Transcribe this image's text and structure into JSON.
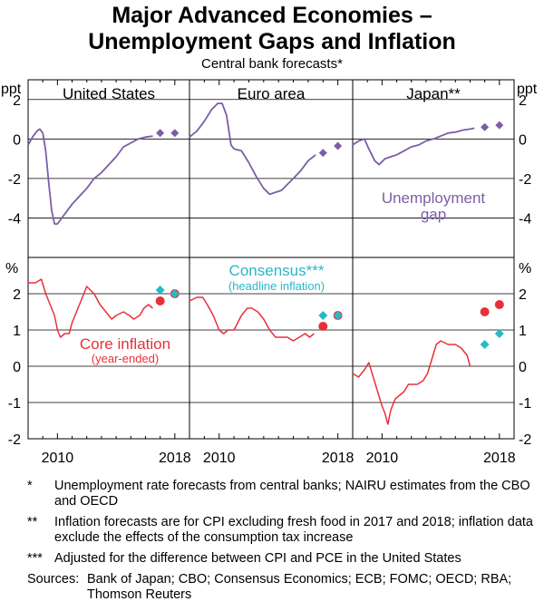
{
  "title_line1": "Major Advanced Economies –",
  "title_line2": "Unemployment Gaps and Inflation",
  "subtitle": "Central bank forecasts*",
  "chart_data": {
    "type": "line",
    "colors": {
      "purple": "#7b5ea7",
      "red": "#e8303a",
      "teal": "#29b8c8",
      "axis": "#000000",
      "grid": "#000000"
    },
    "panels": [
      {
        "name": "United States",
        "x_domain": [
          2008,
          2019
        ],
        "x_ticks": [
          2010,
          2018
        ]
      },
      {
        "name": "Euro area",
        "x_domain": [
          2008,
          2019
        ],
        "x_ticks": [
          2010,
          2018
        ]
      },
      {
        "name": "Japan**",
        "x_domain": [
          2008,
          2019
        ],
        "x_ticks": [
          2010,
          2018
        ]
      }
    ],
    "top_axis": {
      "unit": "ppt",
      "ylim": [
        -6,
        3
      ],
      "ticks": [
        2,
        0,
        -2,
        -4
      ]
    },
    "bottom_axis": {
      "unit": "%",
      "ylim": [
        -2,
        3
      ],
      "ticks": [
        2,
        1,
        0,
        -1,
        -2
      ]
    },
    "unemployment_gap": {
      "label_line1": "Unemployment",
      "label_line2": "gap",
      "series": [
        {
          "panel": 0,
          "points": [
            [
              2008.0,
              -0.3
            ],
            [
              2008.3,
              0.1
            ],
            [
              2008.6,
              0.4
            ],
            [
              2008.8,
              0.5
            ],
            [
              2009.0,
              0.3
            ],
            [
              2009.2,
              -0.6
            ],
            [
              2009.4,
              -2.2
            ],
            [
              2009.6,
              -3.6
            ],
            [
              2009.8,
              -4.3
            ],
            [
              2010.0,
              -4.3
            ],
            [
              2010.3,
              -4.0
            ],
            [
              2010.6,
              -3.7
            ],
            [
              2011.0,
              -3.3
            ],
            [
              2011.5,
              -2.9
            ],
            [
              2012.0,
              -2.5
            ],
            [
              2012.5,
              -2.0
            ],
            [
              2013.0,
              -1.7
            ],
            [
              2013.5,
              -1.3
            ],
            [
              2014.0,
              -0.9
            ],
            [
              2014.5,
              -0.4
            ],
            [
              2015.0,
              -0.2
            ],
            [
              2015.5,
              0.0
            ],
            [
              2016.0,
              0.1
            ],
            [
              2016.5,
              0.15
            ]
          ]
        },
        {
          "panel": 1,
          "points": [
            [
              2008.0,
              0.1
            ],
            [
              2008.5,
              0.4
            ],
            [
              2009.0,
              0.9
            ],
            [
              2009.5,
              1.5
            ],
            [
              2009.9,
              1.8
            ],
            [
              2010.2,
              1.8
            ],
            [
              2010.5,
              1.2
            ],
            [
              2010.8,
              -0.3
            ],
            [
              2011.0,
              -0.5
            ],
            [
              2011.5,
              -0.6
            ],
            [
              2012.0,
              -1.2
            ],
            [
              2012.5,
              -1.9
            ],
            [
              2013.0,
              -2.5
            ],
            [
              2013.4,
              -2.8
            ],
            [
              2013.8,
              -2.7
            ],
            [
              2014.2,
              -2.6
            ],
            [
              2014.6,
              -2.3
            ],
            [
              2015.0,
              -2.0
            ],
            [
              2015.5,
              -1.6
            ],
            [
              2016.0,
              -1.1
            ],
            [
              2016.5,
              -0.8
            ]
          ]
        },
        {
          "panel": 2,
          "points": [
            [
              2008.0,
              -0.3
            ],
            [
              2008.4,
              -0.1
            ],
            [
              2008.8,
              0.0
            ],
            [
              2009.1,
              -0.5
            ],
            [
              2009.5,
              -1.1
            ],
            [
              2009.8,
              -1.3
            ],
            [
              2010.2,
              -1.0
            ],
            [
              2010.6,
              -0.9
            ],
            [
              2011.0,
              -0.8
            ],
            [
              2011.5,
              -0.6
            ],
            [
              2012.0,
              -0.4
            ],
            [
              2012.5,
              -0.3
            ],
            [
              2013.0,
              -0.1
            ],
            [
              2013.5,
              0.0
            ],
            [
              2014.0,
              0.15
            ],
            [
              2014.5,
              0.3
            ],
            [
              2015.0,
              0.35
            ],
            [
              2015.5,
              0.45
            ],
            [
              2016.0,
              0.5
            ],
            [
              2016.3,
              0.55
            ]
          ]
        }
      ],
      "forecasts": [
        {
          "panel": 0,
          "points": [
            [
              2017,
              0.3
            ],
            [
              2018,
              0.3
            ]
          ]
        },
        {
          "panel": 1,
          "points": [
            [
              2017,
              -0.7
            ],
            [
              2018,
              -0.35
            ]
          ]
        },
        {
          "panel": 2,
          "points": [
            [
              2017,
              0.6
            ],
            [
              2018,
              0.7
            ]
          ]
        }
      ]
    },
    "core_inflation": {
      "label_line1": "Core inflation",
      "label_line2": "(year-ended)",
      "series": [
        {
          "panel": 0,
          "points": [
            [
              2008.0,
              2.3
            ],
            [
              2008.5,
              2.3
            ],
            [
              2008.9,
              2.4
            ],
            [
              2009.2,
              2.0
            ],
            [
              2009.5,
              1.7
            ],
            [
              2009.8,
              1.4
            ],
            [
              2010.0,
              1.0
            ],
            [
              2010.2,
              0.8
            ],
            [
              2010.5,
              0.9
            ],
            [
              2010.8,
              0.9
            ],
            [
              2011.0,
              1.2
            ],
            [
              2011.4,
              1.6
            ],
            [
              2011.8,
              2.0
            ],
            [
              2012.0,
              2.2
            ],
            [
              2012.5,
              2.0
            ],
            [
              2012.9,
              1.7
            ],
            [
              2013.3,
              1.5
            ],
            [
              2013.7,
              1.3
            ],
            [
              2014.0,
              1.4
            ],
            [
              2014.5,
              1.5
            ],
            [
              2014.9,
              1.4
            ],
            [
              2015.2,
              1.3
            ],
            [
              2015.6,
              1.4
            ],
            [
              2015.9,
              1.6
            ],
            [
              2016.2,
              1.7
            ],
            [
              2016.5,
              1.6
            ]
          ]
        },
        {
          "panel": 1,
          "points": [
            [
              2008.0,
              1.8
            ],
            [
              2008.5,
              1.9
            ],
            [
              2008.9,
              1.9
            ],
            [
              2009.2,
              1.7
            ],
            [
              2009.6,
              1.4
            ],
            [
              2010.0,
              1.0
            ],
            [
              2010.3,
              0.9
            ],
            [
              2010.6,
              1.0
            ],
            [
              2011.0,
              1.0
            ],
            [
              2011.5,
              1.4
            ],
            [
              2011.9,
              1.6
            ],
            [
              2012.2,
              1.6
            ],
            [
              2012.6,
              1.5
            ],
            [
              2013.0,
              1.3
            ],
            [
              2013.4,
              1.0
            ],
            [
              2013.8,
              0.8
            ],
            [
              2014.2,
              0.8
            ],
            [
              2014.6,
              0.8
            ],
            [
              2015.0,
              0.7
            ],
            [
              2015.4,
              0.8
            ],
            [
              2015.8,
              0.9
            ],
            [
              2016.1,
              0.8
            ],
            [
              2016.4,
              0.9
            ]
          ]
        },
        {
          "panel": 2,
          "points": [
            [
              2008.0,
              -0.2
            ],
            [
              2008.4,
              -0.3
            ],
            [
              2008.8,
              -0.1
            ],
            [
              2009.1,
              0.1
            ],
            [
              2009.4,
              -0.3
            ],
            [
              2009.7,
              -0.7
            ],
            [
              2010.0,
              -1.1
            ],
            [
              2010.2,
              -1.3
            ],
            [
              2010.4,
              -1.6
            ],
            [
              2010.6,
              -1.2
            ],
            [
              2010.9,
              -0.9
            ],
            [
              2011.2,
              -0.8
            ],
            [
              2011.5,
              -0.7
            ],
            [
              2011.8,
              -0.5
            ],
            [
              2012.1,
              -0.5
            ],
            [
              2012.4,
              -0.5
            ],
            [
              2012.8,
              -0.4
            ],
            [
              2013.1,
              -0.2
            ],
            [
              2013.4,
              0.2
            ],
            [
              2013.7,
              0.6
            ],
            [
              2014.0,
              0.7
            ],
            [
              2014.5,
              0.6
            ],
            [
              2015.0,
              0.6
            ],
            [
              2015.4,
              0.5
            ],
            [
              2015.8,
              0.3
            ],
            [
              2016.0,
              0.0
            ]
          ]
        }
      ],
      "forecasts": [
        {
          "panel": 0,
          "points": [
            [
              2017,
              1.8
            ],
            [
              2018,
              2.0
            ]
          ]
        },
        {
          "panel": 1,
          "points": [
            [
              2017,
              1.1
            ],
            [
              2018,
              1.4
            ]
          ]
        },
        {
          "panel": 2,
          "points": [
            [
              2017,
              1.5
            ],
            [
              2018,
              1.7
            ]
          ]
        }
      ]
    },
    "consensus": {
      "label_line1": "Consensus***",
      "label_line2": "(headline inflation)",
      "forecasts": [
        {
          "panel": 0,
          "points": [
            [
              2017,
              2.1
            ],
            [
              2018,
              2.0
            ]
          ]
        },
        {
          "panel": 1,
          "points": [
            [
              2017,
              1.4
            ],
            [
              2018,
              1.4
            ]
          ]
        },
        {
          "panel": 2,
          "points": [
            [
              2017,
              0.6
            ],
            [
              2018,
              0.9
            ]
          ]
        }
      ]
    }
  },
  "notes": [
    {
      "mark": "*",
      "text": "Unemployment rate forecasts from central banks; NAIRU estimates from the CBO and OECD"
    },
    {
      "mark": "**",
      "text": "Inflation forecasts are for CPI excluding fresh food in 2017 and 2018; inflation data exclude the effects of the consumption tax increase"
    },
    {
      "mark": "***",
      "text": "Adjusted for the difference between CPI and PCE in the United States"
    }
  ],
  "sources_label": "Sources:",
  "sources_text": "Bank of Japan; CBO; Consensus Economics; ECB; FOMC; OECD; RBA; Thomson Reuters"
}
